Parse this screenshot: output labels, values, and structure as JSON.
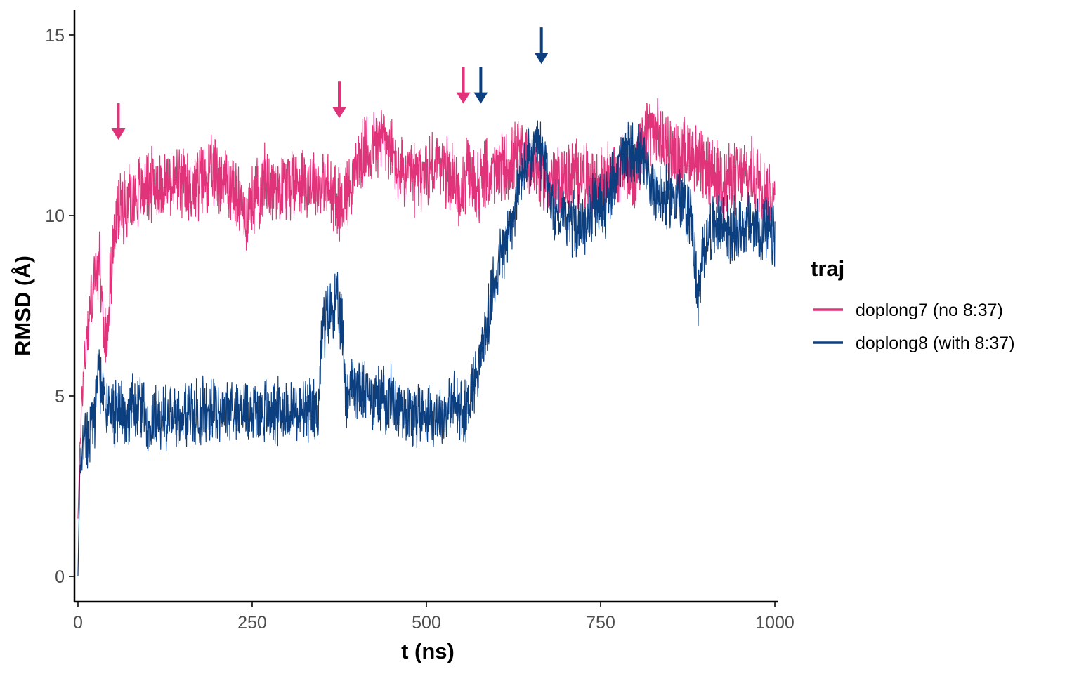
{
  "chart_data": {
    "type": "line",
    "title": "",
    "xlabel": "t (ns)",
    "ylabel": "RMSD (Å)",
    "xlim": [
      -5,
      1005
    ],
    "ylim": [
      -0.7,
      15.7
    ],
    "x_ticks": [
      0,
      250,
      500,
      750,
      1000
    ],
    "x_tick_labels": [
      "0",
      "250",
      "500",
      "750",
      "1000"
    ],
    "y_ticks": [
      0,
      5,
      10,
      15
    ],
    "y_tick_labels": [
      "0",
      "5",
      "10",
      "15"
    ],
    "grid": false,
    "legend": {
      "title": "traj",
      "placement": "right",
      "entries": [
        "doplong7 (no 8:37)",
        "doplong8 (with 8:37)"
      ]
    },
    "series": [
      {
        "name": "doplong7 (no 8:37)",
        "color": "#e0337a",
        "x": [
          0,
          5,
          10,
          15,
          20,
          25,
          30,
          35,
          40,
          45,
          50,
          55,
          60,
          70,
          80,
          90,
          100,
          120,
          140,
          160,
          180,
          200,
          220,
          240,
          250,
          260,
          270,
          280,
          300,
          320,
          340,
          360,
          375,
          390,
          400,
          420,
          440,
          460,
          480,
          500,
          520,
          540,
          550,
          560,
          570,
          580,
          600,
          620,
          640,
          660,
          680,
          700,
          720,
          740,
          760,
          780,
          800,
          820,
          840,
          860,
          880,
          900,
          920,
          940,
          960,
          980,
          1000
        ],
        "y": [
          1.6,
          4.8,
          6.2,
          7.0,
          7.8,
          8.3,
          8.6,
          7.5,
          6.3,
          7.8,
          9.0,
          9.8,
          10.2,
          10.4,
          10.6,
          10.7,
          10.9,
          10.8,
          10.9,
          10.7,
          11.0,
          11.2,
          10.8,
          10.0,
          10.4,
          10.7,
          11.0,
          10.8,
          10.9,
          11.0,
          10.9,
          10.7,
          10.3,
          10.8,
          11.4,
          11.9,
          12.2,
          11.2,
          11.0,
          11.2,
          11.5,
          10.9,
          10.6,
          11.2,
          10.8,
          11.0,
          11.2,
          11.4,
          11.8,
          11.2,
          10.9,
          11.0,
          11.2,
          10.8,
          10.9,
          11.3,
          11.1,
          12.4,
          12.0,
          11.6,
          11.8,
          11.2,
          11.0,
          11.0,
          11.1,
          11.0,
          10.4
        ]
      },
      {
        "name": "doplong8 (with 8:37)",
        "color": "#0c3f80",
        "x": [
          0,
          3,
          6,
          10,
          15,
          20,
          25,
          30,
          35,
          40,
          50,
          60,
          80,
          100,
          150,
          200,
          250,
          300,
          330,
          345,
          350,
          360,
          370,
          380,
          385,
          390,
          400,
          420,
          450,
          480,
          500,
          520,
          540,
          555,
          560,
          570,
          580,
          590,
          600,
          620,
          640,
          660,
          670,
          680,
          700,
          720,
          740,
          760,
          780,
          800,
          820,
          840,
          860,
          880,
          890,
          900,
          920,
          940,
          960,
          980,
          1000
        ],
        "y": [
          0.0,
          3.0,
          3.6,
          3.8,
          4.0,
          4.2,
          4.5,
          5.6,
          5.1,
          4.8,
          4.6,
          4.5,
          4.7,
          4.4,
          4.5,
          4.6,
          4.6,
          4.6,
          4.5,
          4.6,
          6.8,
          7.3,
          7.6,
          6.8,
          5.0,
          5.3,
          5.2,
          5.0,
          4.9,
          4.5,
          4.6,
          4.4,
          4.8,
          4.5,
          4.9,
          5.5,
          6.3,
          7.2,
          8.5,
          9.6,
          11.4,
          11.8,
          11.5,
          10.2,
          10.0,
          9.6,
          10.2,
          10.4,
          11.6,
          11.8,
          11.0,
          10.4,
          10.6,
          10.0,
          7.6,
          9.4,
          9.8,
          9.5,
          9.8,
          9.6,
          9.4
        ]
      }
    ],
    "annotations": [
      {
        "type": "arrow-down",
        "series": "doplong7 (no 8:37)",
        "x": 58,
        "y": 12.1
      },
      {
        "type": "arrow-down",
        "series": "doplong7 (no 8:37)",
        "x": 375,
        "y": 12.7
      },
      {
        "type": "arrow-down",
        "series": "doplong7 (no 8:37)",
        "x": 553,
        "y": 13.1
      },
      {
        "type": "arrow-down",
        "series": "doplong8 (with 8:37)",
        "x": 578,
        "y": 13.1
      },
      {
        "type": "arrow-down",
        "series": "doplong8 (with 8:37)",
        "x": 665,
        "y": 14.2
      }
    ]
  }
}
